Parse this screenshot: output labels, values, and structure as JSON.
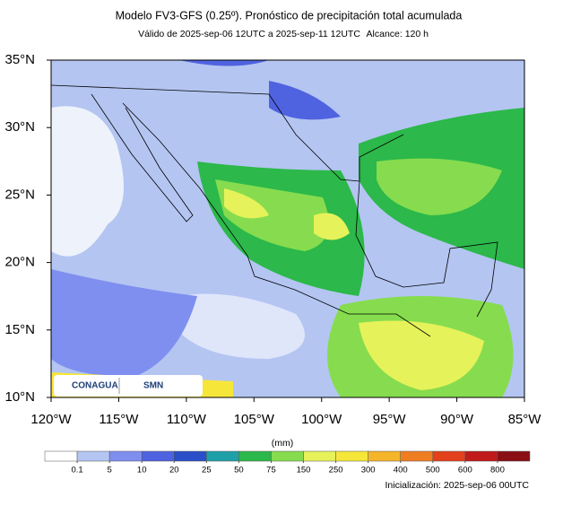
{
  "header": {
    "title": "Modelo FV3-GFS (0.25º). Pronóstico de precipitación total acumulada",
    "valid": "Válido de 2025-sep-06 12UTC a 2025-sep-11 12UTC",
    "range": "Alcance: 120 h"
  },
  "map": {
    "xlim": [
      -120,
      -85
    ],
    "ylim": [
      10,
      35
    ],
    "xticks": [
      {
        "value": -120,
        "label": "120°W"
      },
      {
        "value": -115,
        "label": "115°W"
      },
      {
        "value": -110,
        "label": "110°W"
      },
      {
        "value": -105,
        "label": "105°W"
      },
      {
        "value": -100,
        "label": "100°W"
      },
      {
        "value": -95,
        "label": "95°W"
      },
      {
        "value": -90,
        "label": "90°W"
      },
      {
        "value": -85,
        "label": "85°W"
      }
    ],
    "yticks": [
      {
        "value": 10,
        "label": "10°N"
      },
      {
        "value": 15,
        "label": "15°N"
      },
      {
        "value": 20,
        "label": "20°N"
      },
      {
        "value": 25,
        "label": "25°N"
      },
      {
        "value": 30,
        "label": "30°N"
      },
      {
        "value": 35,
        "label": "35°N"
      }
    ],
    "logos": [
      "CONAGUA",
      "SMN"
    ]
  },
  "colorbar": {
    "unit": "(mm)",
    "colors": [
      "#ffffff",
      "#b4c5f2",
      "#7f8ff0",
      "#4f63e0",
      "#2a4fc8",
      "#1fa0a8",
      "#2cb84a",
      "#86dc4e",
      "#e6f25a",
      "#f6e63a",
      "#f5b52a",
      "#ef7d22",
      "#e3401c",
      "#c01a1a",
      "#8a0f14"
    ],
    "levels": [
      0.1,
      5,
      10,
      20,
      25,
      50,
      75,
      150,
      250,
      300,
      400,
      500,
      600,
      800
    ]
  },
  "footer": "Inicialización: 2025-sep-06 00UTC"
}
